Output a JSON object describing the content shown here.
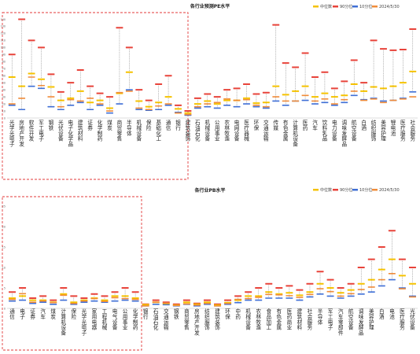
{
  "charts": [
    {
      "title": "各行业预测PE水平",
      "legend": [
        "中位数",
        "90分位",
        "10分位",
        "2024/5/30"
      ],
      "highlight_first_n": 20
    },
    {
      "title": "各行业PB水平",
      "legend": [
        "中位数",
        "90分位",
        "10分位",
        "2024/5/30"
      ],
      "highlight_first_n": 15
    }
  ],
  "colors": {
    "median": "#f5c200",
    "p90": "#e8433a",
    "p10": "#3f6fd6",
    "current": "#f08c3a",
    "frame": "#e33a3a",
    "dash": "#777777"
  },
  "chart_data": [
    {
      "type": "box",
      "title": "各行业预测PE水平",
      "ylim": [
        0,
        145
      ],
      "yticks": [
        0,
        10,
        20,
        30,
        40,
        50,
        60,
        70,
        80,
        90,
        100,
        110,
        120,
        130,
        140
      ],
      "categories": [
        "光学光电子",
        "房地产开发",
        "软件开发",
        "军工电子",
        "钢铁",
        "光伏设备",
        "电子化学品",
        "建筑材料",
        "证券",
        "化学制药",
        "煤炭",
        "商贸零售",
        "半导体",
        "机械设备",
        "保险",
        "基础化工",
        "通信",
        "银行",
        "建筑装饰",
        "石油石化",
        "机械设备",
        "公用事业",
        "农林牧渔",
        "电网设备",
        "医疗器械",
        "环保",
        "交通运输",
        "传媒",
        "有色金属",
        "计算机设备",
        "医药",
        "汽车",
        "饮料乳品",
        "电力设备",
        "调味发酵品",
        "航空设备",
        "白酒",
        "纺织服饰",
        "美容护理",
        "锂电池",
        "医疗服务",
        "社会服务"
      ],
      "series": [
        {
          "name": "90分位",
          "values": [
            90,
            140,
            110,
            100,
            62,
            37,
            50,
            68,
            45,
            35,
            30,
            128,
            100,
            40,
            25,
            48,
            60,
            18,
            10,
            28,
            34,
            30,
            40,
            42,
            48,
            34,
            36,
            132,
            78,
            72,
            92,
            58,
            65,
            42,
            52,
            82,
            50,
            110,
            98,
            96,
            97,
            126
          ]
        },
        {
          "name": "中位数",
          "values": [
            58,
            45,
            63,
            55,
            44,
            25,
            28,
            38,
            22,
            25,
            14,
            35,
            65,
            24,
            16,
            22,
            30,
            13,
            7,
            20,
            24,
            20,
            25,
            25,
            28,
            21,
            22,
            45,
            33,
            38,
            45,
            30,
            35,
            30,
            32,
            48,
            38,
            44,
            42,
            45,
            50,
            66
          ]
        },
        {
          "name": "10分位",
          "values": [
            18,
            12,
            45,
            42,
            16,
            12,
            18,
            22,
            12,
            18,
            7,
            20,
            40,
            12,
            11,
            12,
            18,
            8,
            4,
            14,
            16,
            14,
            18,
            16,
            20,
            16,
            14,
            24,
            18,
            24,
            25,
            20,
            22,
            18,
            22,
            32,
            26,
            28,
            24,
            25,
            28,
            37
          ]
        },
        {
          "name": "2024/5/30",
          "values": [
            20,
            28,
            58,
            46,
            30,
            16,
            26,
            24,
            28,
            20,
            10,
            36,
            38,
            14,
            12,
            17,
            20,
            7,
            5,
            16,
            20,
            22,
            27,
            25,
            26,
            18,
            16,
            30,
            24,
            24,
            32,
            24,
            27,
            20,
            26,
            38,
            25,
            27,
            22,
            25,
            27,
            30
          ]
        }
      ]
    },
    {
      "type": "box",
      "title": "各行业PB水平",
      "ylim": [
        0,
        25
      ],
      "yticks": [
        0,
        5,
        10,
        15,
        20,
        25
      ],
      "categories": [
        "通信",
        "电子",
        "证券",
        "汽车",
        "煤炭",
        "计算机设备",
        "保险",
        "光学光电子",
        "家用电器",
        "工程机械",
        "电气设备",
        "公用事业",
        "化学制药",
        "银行",
        "石油石化",
        "交通运输",
        "钢铁",
        "商贸零售",
        "房地产开发",
        "纺织服饰",
        "建筑装饰",
        "环保",
        "中药",
        "机械设备",
        "农林牧渔",
        "食品加工",
        "有色金属",
        "医药商业",
        "建筑材料",
        "社会服务",
        "半导体",
        "军工电子",
        "汽车零部件",
        "航空设备",
        "调味发酵品",
        "美容护理",
        "白酒",
        "电池",
        "医疗服务",
        "光伏设备"
      ],
      "series": [
        {
          "name": "90分位",
          "values": [
            4,
            5,
            2.5,
            3,
            2,
            5,
            3,
            2.5,
            3.5,
            3,
            4,
            5,
            4,
            1,
            2,
            1.5,
            1,
            2,
            1.2,
            2,
            1,
            2,
            3,
            4,
            5,
            6,
            5,
            5.5,
            4.5,
            6,
            9,
            7,
            5,
            6,
            10,
            12,
            15,
            19,
            12,
            10
          ]
        },
        {
          "name": "中位数",
          "values": [
            2.5,
            3,
            2,
            2,
            1.5,
            3.5,
            1.5,
            2,
            2.5,
            2,
            3,
            3,
            2.5,
            0.9,
            1.5,
            1.2,
            0.8,
            1.5,
            1,
            1.5,
            0.8,
            1.4,
            2,
            3,
            3,
            4,
            3.5,
            3.8,
            3.2,
            4,
            6,
            5,
            3.8,
            4.5,
            6,
            7,
            9.5,
            12,
            8,
            6
          ]
        },
        {
          "name": "10分位",
          "values": [
            1.8,
            2,
            1.2,
            1.5,
            1,
            2,
            1,
            1.5,
            1.8,
            1.5,
            1.8,
            2,
            1.8,
            0.6,
            1,
            0.9,
            0.6,
            1,
            0.6,
            1,
            0.6,
            1,
            1.4,
            2,
            2,
            2.5,
            2.5,
            2.5,
            2,
            2.8,
            3.5,
            3,
            2.5,
            3,
            3.5,
            4,
            5.5,
            7,
            5,
            3
          ]
        },
        {
          "name": "2024/5/30",
          "values": [
            2.2,
            3.6,
            1.5,
            1.8,
            1.4,
            3.2,
            1.2,
            1.8,
            2.4,
            1.7,
            2.6,
            2.4,
            2.2,
            0.6,
            1.5,
            1.3,
            0.7,
            1.1,
            0.8,
            1.2,
            0.6,
            1.2,
            2.2,
            2.4,
            2.7,
            3.4,
            3.3,
            3.1,
            2.7,
            3.4,
            4.8,
            4.1,
            3,
            3.6,
            4.6,
            5.2,
            7,
            8.5,
            4.8,
            2.8
          ]
        }
      ]
    }
  ]
}
